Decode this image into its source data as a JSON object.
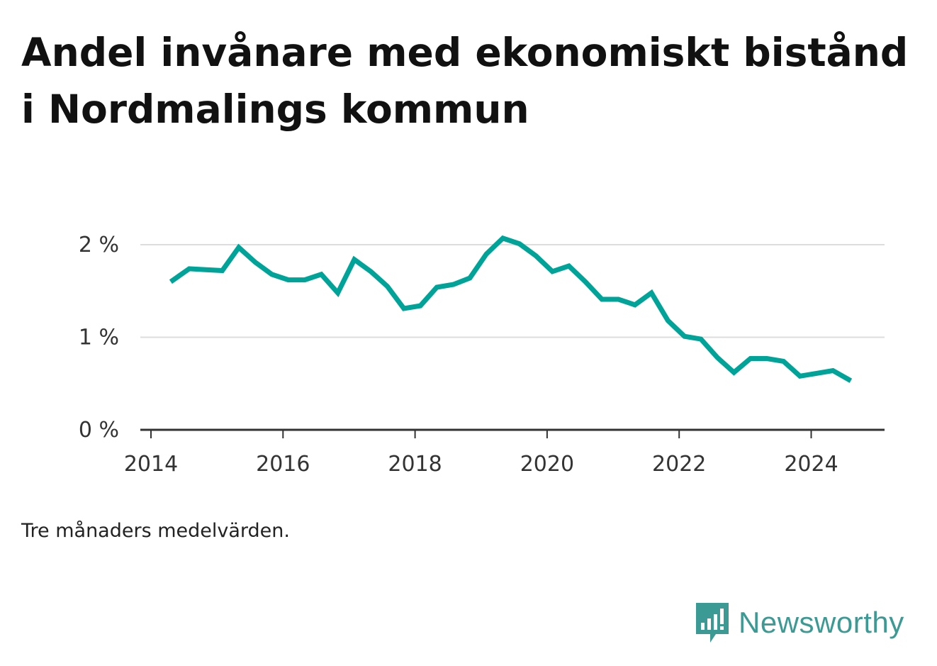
{
  "title": "Andel invånare med ekonomiskt bistånd i Nordmalings kommun",
  "note": "Tre månaders medelvärden.",
  "brand": {
    "name": "Newsworthy",
    "icon": "newsworthy-logo-icon",
    "color": "#3c9a94"
  },
  "colors": {
    "line": "#00a398",
    "grid": "#dddddd",
    "axis": "#333333"
  },
  "chart_data": {
    "type": "line",
    "title": "Andel invånare med ekonomiskt bistånd i Nordmalings kommun",
    "xlabel": "",
    "ylabel": "",
    "xlim": [
      2014,
      2025.2
    ],
    "ylim": [
      0,
      2
    ],
    "yticks": [
      0,
      1,
      2
    ],
    "ytick_labels": [
      "0 %",
      "1 %",
      "2 %"
    ],
    "xticks": [
      2014,
      2016,
      2018,
      2020,
      2022,
      2024
    ],
    "xtick_labels": [
      "2014",
      "2016",
      "2018",
      "2020",
      "2022",
      "2024"
    ],
    "grid": true,
    "legend": "none",
    "series": [
      {
        "x": [
          2014.3,
          2014.58,
          2014.83,
          2015.08,
          2015.33,
          2015.58,
          2015.83,
          2016.08,
          2016.33,
          2016.58,
          2016.83,
          2017.08,
          2017.33,
          2017.58,
          2017.83,
          2018.08,
          2018.33,
          2018.58,
          2018.83,
          2019.08,
          2019.33,
          2019.58,
          2019.83,
          2020.08,
          2020.33,
          2020.58,
          2020.83,
          2021.08,
          2021.33,
          2021.58,
          2021.83,
          2022.08,
          2022.33,
          2022.58,
          2022.83,
          2023.08,
          2023.33,
          2023.58,
          2023.83,
          2024.08,
          2024.33,
          2024.6
        ],
        "values": [
          1.6,
          1.74,
          1.73,
          1.72,
          1.97,
          1.81,
          1.68,
          1.62,
          1.62,
          1.68,
          1.48,
          1.84,
          1.71,
          1.55,
          1.31,
          1.34,
          1.54,
          1.57,
          1.64,
          1.9,
          2.07,
          2.01,
          1.88,
          1.71,
          1.77,
          1.6,
          1.41,
          1.41,
          1.35,
          1.48,
          1.18,
          1.01,
          0.98,
          0.78,
          0.62,
          0.77,
          0.77,
          0.74,
          0.58,
          0.61,
          0.64,
          0.53
        ]
      }
    ]
  }
}
